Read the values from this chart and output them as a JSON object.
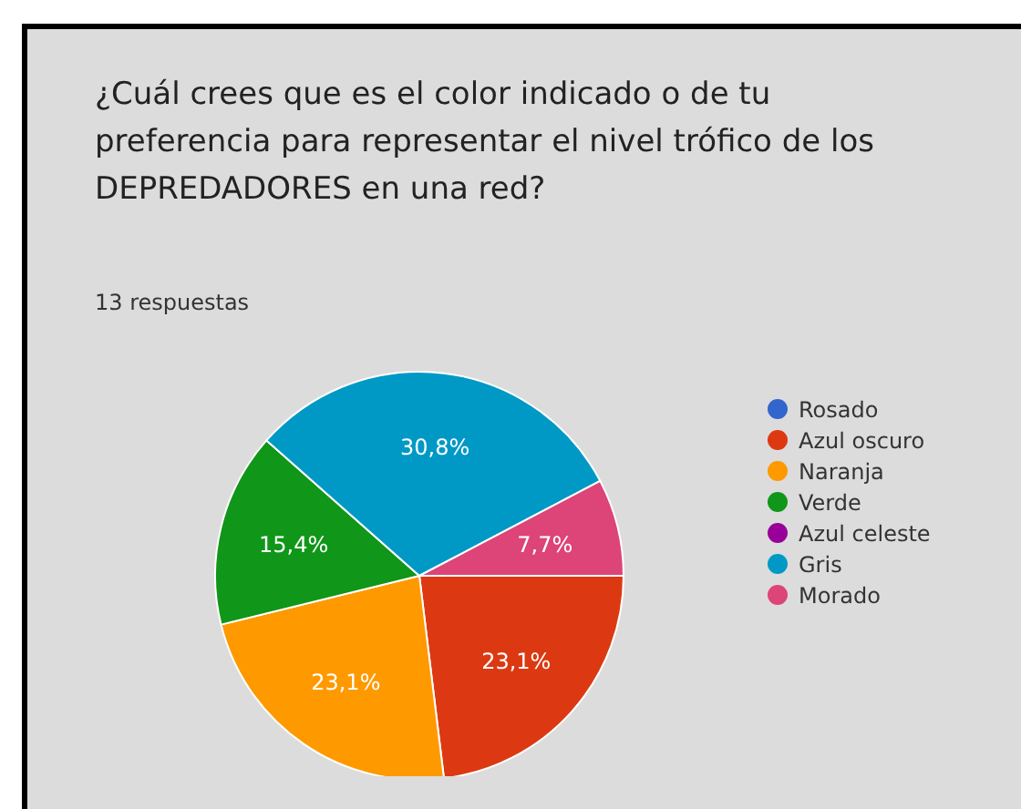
{
  "chart_data": {
    "type": "pie",
    "title": "¿Cuál crees que es el color indicado o de tu preferencia para representar el nivel trófico de los DEPREDADORES en una red?",
    "subtitle": "13 respuestas",
    "categories": [
      "Rosado",
      "Azul oscuro",
      "Naranja",
      "Verde",
      "Azul celeste",
      "Gris",
      "Morado"
    ],
    "values": [
      0,
      23.1,
      23.1,
      15.4,
      0,
      30.8,
      7.7
    ],
    "value_labels": [
      null,
      "23,1%",
      "23,1%",
      "15,4%",
      null,
      "30,8%",
      "7,7%"
    ],
    "colors": [
      "#3366cc",
      "#dc3912",
      "#ff9900",
      "#109618",
      "#990099",
      "#0099c6",
      "#dd4477"
    ],
    "legend": "right"
  }
}
